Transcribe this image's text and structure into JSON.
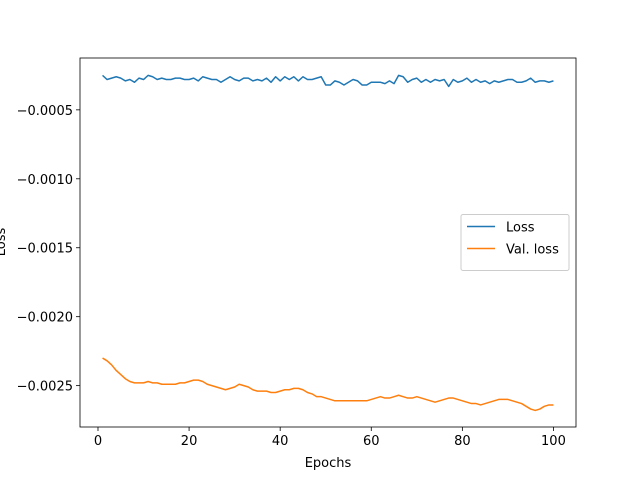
{
  "chart_data": {
    "type": "line",
    "xlabel": "Epochs",
    "ylabel": "Loss",
    "x": [
      1,
      2,
      3,
      4,
      5,
      6,
      7,
      8,
      9,
      10,
      11,
      12,
      13,
      14,
      15,
      16,
      17,
      18,
      19,
      20,
      21,
      22,
      23,
      24,
      25,
      26,
      27,
      28,
      29,
      30,
      31,
      32,
      33,
      34,
      35,
      36,
      37,
      38,
      39,
      40,
      41,
      42,
      43,
      44,
      45,
      46,
      47,
      48,
      49,
      50,
      51,
      52,
      53,
      54,
      55,
      56,
      57,
      58,
      59,
      60,
      61,
      62,
      63,
      64,
      65,
      66,
      67,
      68,
      69,
      70,
      71,
      72,
      73,
      74,
      75,
      76,
      77,
      78,
      79,
      80,
      81,
      82,
      83,
      84,
      85,
      86,
      87,
      88,
      89,
      90,
      91,
      92,
      93,
      94,
      95,
      96,
      97,
      98,
      99,
      100
    ],
    "series": [
      {
        "name": "Loss",
        "color": "#1f77b4",
        "values": [
          -0.00025,
          -0.00028,
          -0.00027,
          -0.00026,
          -0.00027,
          -0.00029,
          -0.00028,
          -0.0003,
          -0.00027,
          -0.00028,
          -0.00025,
          -0.00026,
          -0.00028,
          -0.00027,
          -0.00028,
          -0.00028,
          -0.00027,
          -0.00027,
          -0.00028,
          -0.00028,
          -0.00027,
          -0.00029,
          -0.00026,
          -0.00027,
          -0.00028,
          -0.00028,
          -0.0003,
          -0.00028,
          -0.00026,
          -0.00028,
          -0.00029,
          -0.00027,
          -0.00027,
          -0.00029,
          -0.00028,
          -0.00029,
          -0.00027,
          -0.0003,
          -0.00026,
          -0.00029,
          -0.00026,
          -0.00028,
          -0.00026,
          -0.00029,
          -0.00026,
          -0.00028,
          -0.00028,
          -0.00027,
          -0.00026,
          -0.00032,
          -0.00032,
          -0.00029,
          -0.0003,
          -0.00032,
          -0.0003,
          -0.00028,
          -0.00029,
          -0.00032,
          -0.00032,
          -0.0003,
          -0.0003,
          -0.0003,
          -0.00031,
          -0.00029,
          -0.00031,
          -0.00025,
          -0.00026,
          -0.0003,
          -0.00028,
          -0.00027,
          -0.0003,
          -0.00028,
          -0.0003,
          -0.00028,
          -0.00029,
          -0.00028,
          -0.00033,
          -0.00028,
          -0.0003,
          -0.00029,
          -0.00027,
          -0.0003,
          -0.00028,
          -0.0003,
          -0.00029,
          -0.00031,
          -0.00029,
          -0.0003,
          -0.00029,
          -0.00028,
          -0.00028,
          -0.0003,
          -0.0003,
          -0.00029,
          -0.00027,
          -0.0003,
          -0.00029,
          -0.00029,
          -0.0003,
          -0.00029
        ]
      },
      {
        "name": "Val. loss",
        "color": "#ff7f0e",
        "values": [
          -0.0023,
          -0.00232,
          -0.00235,
          -0.00239,
          -0.00242,
          -0.00245,
          -0.00247,
          -0.00248,
          -0.00248,
          -0.00248,
          -0.00247,
          -0.00248,
          -0.00248,
          -0.00249,
          -0.00249,
          -0.00249,
          -0.00249,
          -0.00248,
          -0.00248,
          -0.00247,
          -0.00246,
          -0.00246,
          -0.00247,
          -0.00249,
          -0.0025,
          -0.00251,
          -0.00252,
          -0.00253,
          -0.00252,
          -0.00251,
          -0.00249,
          -0.0025,
          -0.00251,
          -0.00253,
          -0.00254,
          -0.00254,
          -0.00254,
          -0.00255,
          -0.00255,
          -0.00254,
          -0.00253,
          -0.00253,
          -0.00252,
          -0.00252,
          -0.00253,
          -0.00255,
          -0.00256,
          -0.00258,
          -0.00258,
          -0.00259,
          -0.0026,
          -0.00261,
          -0.00261,
          -0.00261,
          -0.00261,
          -0.00261,
          -0.00261,
          -0.00261,
          -0.00261,
          -0.0026,
          -0.00259,
          -0.00258,
          -0.00259,
          -0.00259,
          -0.00258,
          -0.00257,
          -0.00258,
          -0.00259,
          -0.00259,
          -0.00258,
          -0.00259,
          -0.0026,
          -0.00261,
          -0.00262,
          -0.00261,
          -0.0026,
          -0.00259,
          -0.00259,
          -0.0026,
          -0.00261,
          -0.00262,
          -0.00263,
          -0.00263,
          -0.00264,
          -0.00263,
          -0.00262,
          -0.00261,
          -0.0026,
          -0.0026,
          -0.0026,
          -0.00261,
          -0.00262,
          -0.00263,
          -0.00265,
          -0.00267,
          -0.00268,
          -0.00267,
          -0.00265,
          -0.00264,
          -0.00264
        ]
      }
    ],
    "xlim": [
      -3.95,
      104.95
    ],
    "xticks": [
      0,
      20,
      40,
      60,
      80,
      100
    ],
    "ylim": [
      -0.0028,
      -0.000124
    ],
    "yticks": [
      {
        "value": -0.0025,
        "label": "−0.0025"
      },
      {
        "value": -0.002,
        "label": "−0.0020"
      },
      {
        "value": -0.0015,
        "label": "−0.0015"
      },
      {
        "value": -0.001,
        "label": "−0.0010"
      },
      {
        "value": -0.0005,
        "label": "−0.0005"
      }
    ],
    "grid": false,
    "legend": "center right"
  }
}
